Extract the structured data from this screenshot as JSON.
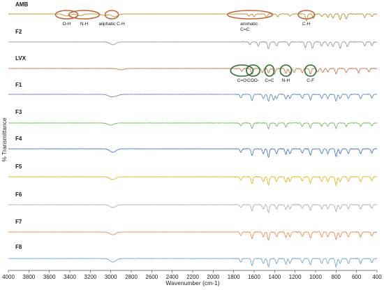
{
  "chart_data": {
    "type": "line",
    "xlabel": "Wavenumber (cm-1)",
    "ylabel": "% Transmittance",
    "xlim": [
      4000,
      400
    ],
    "x_reversed": true,
    "x_ticks": [
      4000,
      3800,
      3600,
      3400,
      3200,
      3000,
      2800,
      2600,
      2400,
      2200,
      2000,
      1800,
      1600,
      1400,
      1200,
      1000,
      800,
      600,
      400
    ],
    "grid": false,
    "legend": "inline-left",
    "series": [
      {
        "name": "AMB",
        "color": "#b8860b",
        "dips": [
          [
            3430,
            3
          ],
          [
            3300,
            2.5
          ],
          [
            3060,
            2
          ],
          [
            2960,
            4
          ],
          [
            1650,
            3
          ],
          [
            1600,
            4
          ],
          [
            1480,
            5
          ],
          [
            1370,
            4
          ],
          [
            1250,
            3
          ],
          [
            1090,
            10
          ],
          [
            1020,
            6
          ],
          [
            940,
            4
          ],
          [
            880,
            5
          ],
          [
            830,
            6
          ],
          [
            760,
            8
          ],
          [
            700,
            7
          ],
          [
            520,
            5
          ],
          [
            450,
            4
          ]
        ]
      },
      {
        "name": "F2",
        "color": "#8c8c8c",
        "dips": [
          [
            2980,
            4
          ],
          [
            1640,
            4
          ],
          [
            1560,
            6
          ],
          [
            1460,
            10
          ],
          [
            1380,
            6
          ],
          [
            1260,
            5
          ],
          [
            1100,
            8
          ],
          [
            1030,
            9
          ],
          [
            940,
            6
          ],
          [
            880,
            5
          ],
          [
            830,
            7
          ],
          [
            760,
            9
          ],
          [
            690,
            7
          ],
          [
            520,
            6
          ],
          [
            450,
            5
          ]
        ]
      },
      {
        "name": "LVX",
        "color": "#c0653a",
        "dips": [
          [
            2900,
            2
          ],
          [
            1720,
            4
          ],
          [
            1620,
            8
          ],
          [
            1520,
            6
          ],
          [
            1460,
            6
          ],
          [
            1400,
            8
          ],
          [
            1290,
            7
          ],
          [
            1250,
            7
          ],
          [
            1210,
            6
          ],
          [
            1130,
            6
          ],
          [
            1050,
            8
          ],
          [
            980,
            5
          ],
          [
            930,
            6
          ],
          [
            880,
            5
          ],
          [
            800,
            8
          ],
          [
            700,
            6
          ],
          [
            580,
            6
          ],
          [
            480,
            5
          ]
        ]
      },
      {
        "name": "F1",
        "color": "#4a7fc1",
        "dips": [
          [
            3000,
            3
          ],
          [
            2950,
            2
          ],
          [
            1730,
            5
          ],
          [
            1620,
            9
          ],
          [
            1510,
            6
          ],
          [
            1460,
            10
          ],
          [
            1410,
            8
          ],
          [
            1380,
            6
          ],
          [
            1290,
            7
          ],
          [
            1250,
            6
          ],
          [
            1130,
            6
          ],
          [
            1050,
            8
          ],
          [
            940,
            6
          ],
          [
            880,
            6
          ],
          [
            800,
            10
          ],
          [
            760,
            6
          ],
          [
            680,
            6
          ],
          [
            560,
            6
          ],
          [
            450,
            5
          ]
        ]
      },
      {
        "name": "F3",
        "color": "#6ab04c",
        "dips": [
          [
            3000,
            3
          ],
          [
            1730,
            4
          ],
          [
            1620,
            8
          ],
          [
            1460,
            8
          ],
          [
            1380,
            5
          ],
          [
            1290,
            6
          ],
          [
            1130,
            5
          ],
          [
            1050,
            7
          ],
          [
            940,
            5
          ],
          [
            880,
            5
          ],
          [
            800,
            8
          ],
          [
            700,
            5
          ],
          [
            560,
            5
          ],
          [
            450,
            4
          ]
        ]
      },
      {
        "name": "F4",
        "color": "#2f6bbd",
        "dips": [
          [
            2980,
            5
          ],
          [
            1730,
            5
          ],
          [
            1620,
            10
          ],
          [
            1510,
            7
          ],
          [
            1460,
            12
          ],
          [
            1380,
            7
          ],
          [
            1290,
            8
          ],
          [
            1250,
            7
          ],
          [
            1130,
            6
          ],
          [
            1050,
            9
          ],
          [
            940,
            7
          ],
          [
            880,
            7
          ],
          [
            800,
            11
          ],
          [
            760,
            7
          ],
          [
            680,
            7
          ],
          [
            560,
            7
          ],
          [
            450,
            6
          ]
        ]
      },
      {
        "name": "F5",
        "color": "#e0b000",
        "dips": [
          [
            2980,
            4
          ],
          [
            1730,
            5
          ],
          [
            1620,
            10
          ],
          [
            1510,
            7
          ],
          [
            1460,
            12
          ],
          [
            1380,
            7
          ],
          [
            1290,
            8
          ],
          [
            1250,
            7
          ],
          [
            1130,
            6
          ],
          [
            1050,
            9
          ],
          [
            940,
            7
          ],
          [
            880,
            7
          ],
          [
            800,
            12
          ],
          [
            760,
            7
          ],
          [
            680,
            7
          ],
          [
            560,
            7
          ],
          [
            450,
            6
          ]
        ]
      },
      {
        "name": "F6",
        "color": "#a6a6a6",
        "dips": [
          [
            2980,
            4
          ],
          [
            1730,
            4
          ],
          [
            1620,
            9
          ],
          [
            1510,
            6
          ],
          [
            1460,
            11
          ],
          [
            1380,
            6
          ],
          [
            1290,
            7
          ],
          [
            1250,
            6
          ],
          [
            1130,
            5
          ],
          [
            1050,
            8
          ],
          [
            940,
            6
          ],
          [
            880,
            6
          ],
          [
            800,
            10
          ],
          [
            760,
            6
          ],
          [
            680,
            6
          ],
          [
            560,
            6
          ],
          [
            450,
            5
          ]
        ]
      },
      {
        "name": "F7",
        "color": "#e8803a",
        "dips": [
          [
            2980,
            4
          ],
          [
            1730,
            5
          ],
          [
            1620,
            10
          ],
          [
            1510,
            7
          ],
          [
            1460,
            12
          ],
          [
            1380,
            7
          ],
          [
            1290,
            8
          ],
          [
            1250,
            7
          ],
          [
            1130,
            6
          ],
          [
            1050,
            9
          ],
          [
            940,
            7
          ],
          [
            880,
            7
          ],
          [
            800,
            11
          ],
          [
            760,
            7
          ],
          [
            680,
            7
          ],
          [
            560,
            7
          ],
          [
            450,
            6
          ]
        ]
      },
      {
        "name": "F8",
        "color": "#5b9bd5",
        "dips": [
          [
            2980,
            5
          ],
          [
            1730,
            5
          ],
          [
            1620,
            10
          ],
          [
            1510,
            7
          ],
          [
            1460,
            12
          ],
          [
            1380,
            7
          ],
          [
            1290,
            8
          ],
          [
            1250,
            7
          ],
          [
            1130,
            6
          ],
          [
            1050,
            9
          ],
          [
            940,
            7
          ],
          [
            880,
            7
          ],
          [
            800,
            12
          ],
          [
            760,
            7
          ],
          [
            680,
            7
          ],
          [
            560,
            7
          ],
          [
            450,
            6
          ]
        ]
      }
    ],
    "annotations": [
      {
        "series": "AMB",
        "label": "O-H",
        "x": 3430,
        "rx_cm": 110,
        "color": "#c0653a"
      },
      {
        "series": "AMB",
        "label": "N-H",
        "x": 3260,
        "rx_cm": 150,
        "color": "#c0653a"
      },
      {
        "series": "AMB",
        "label": "aliphatic C-H",
        "x": 2990,
        "rx_cm": 65,
        "color": "#c0653a"
      },
      {
        "series": "AMB",
        "label": "aromatic",
        "label2": "C=C",
        "x": 1640,
        "rx_cm": 220,
        "color": "#c0653a"
      },
      {
        "series": "AMB",
        "label": "C-H",
        "x": 1090,
        "rx_cm": 80,
        "color": "#c0653a"
      },
      {
        "series": "LVX",
        "label": "C=O",
        "x": 1720,
        "rx_cm": 110,
        "color": "#2e6b2e"
      },
      {
        "series": "LVX",
        "label": "COO-",
        "x": 1610,
        "rx_cm": 65,
        "color": "#2e6b2e"
      },
      {
        "series": "LVX",
        "label": "C=C",
        "x": 1450,
        "rx_cm": 45,
        "color": "#2e6b2e"
      },
      {
        "series": "LVX",
        "label": "N-H",
        "x": 1290,
        "rx_cm": 55,
        "color": "#2e6b2e"
      },
      {
        "series": "LVX",
        "label": "C-F",
        "x": 1050,
        "rx_cm": 55,
        "color": "#2e6b2e"
      }
    ]
  }
}
